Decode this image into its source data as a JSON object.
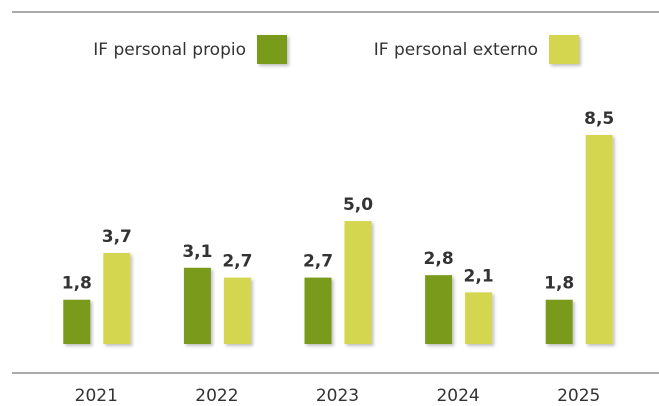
{
  "chart_data": {
    "type": "bar",
    "categories": [
      "2021",
      "2022",
      "2023",
      "2024",
      "2025"
    ],
    "series": [
      {
        "name": "IF personal propio",
        "color": "#7a9a1e",
        "values": [
          1.8,
          3.1,
          2.7,
          2.8,
          1.8
        ],
        "value_labels": [
          "1,8",
          "3,1",
          "2,7",
          "2,8",
          "1,8"
        ]
      },
      {
        "name": "IF personal externo",
        "color": "#d4d64f",
        "values": [
          3.7,
          2.7,
          5.0,
          2.1,
          8.5
        ],
        "value_labels": [
          "3,7",
          "2,7",
          "5,0",
          "2,1",
          "8,5"
        ]
      }
    ],
    "legend": "top"
  }
}
